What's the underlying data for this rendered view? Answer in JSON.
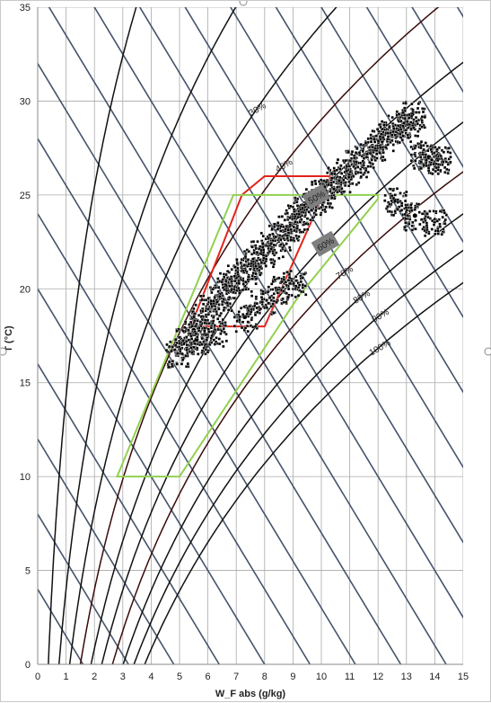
{
  "chart_data": {
    "type": "scatter",
    "title": "",
    "xlabel": "W_F abs (g/kg)",
    "ylabel": "T (°C)",
    "xlim": [
      0,
      15
    ],
    "ylim": [
      0,
      35
    ],
    "x_ticks": [
      0,
      1,
      2,
      3,
      4,
      5,
      6,
      7,
      8,
      9,
      10,
      11,
      12,
      13,
      14,
      15
    ],
    "y_ticks": [
      0,
      5,
      10,
      15,
      20,
      25,
      30,
      35
    ],
    "grid": true,
    "rh_curves": [
      {
        "rh": 10,
        "label": ""
      },
      {
        "rh": 20,
        "label": ""
      },
      {
        "rh": 30,
        "label": "30%"
      },
      {
        "rh": 40,
        "label": "40%"
      },
      {
        "rh": 50,
        "label": "50%"
      },
      {
        "rh": 60,
        "label": "60%"
      },
      {
        "rh": 70,
        "label": "70%"
      },
      {
        "rh": 80,
        "label": "80%"
      },
      {
        "rh": 90,
        "label": "90%"
      },
      {
        "rh": 100,
        "label": "100%"
      }
    ],
    "comfort_zones": [
      {
        "name": "",
        "color": "#e2231a",
        "points": [
          [
            8,
            26
          ],
          [
            10.3,
            26
          ],
          [
            10.3,
            25.8
          ],
          [
            8,
            18
          ],
          [
            5.4,
            18
          ],
          [
            7.2,
            25
          ]
        ]
      },
      {
        "name": "",
        "color": "#92d050",
        "points": [
          [
            6.9,
            25
          ],
          [
            12,
            25
          ],
          [
            12,
            24.8
          ],
          [
            9.2,
            19.6
          ],
          [
            5,
            10
          ],
          [
            2.8,
            10
          ]
        ]
      }
    ],
    "series": [
      {
        "name": "",
        "approx_cloud": [
          [
            4.9,
            16.6
          ],
          [
            5.2,
            17.2
          ],
          [
            5.5,
            17.8
          ],
          [
            5.8,
            18.5
          ],
          [
            6.1,
            19.0
          ],
          [
            6.4,
            19.6
          ],
          [
            6.7,
            20.2
          ],
          [
            7.0,
            20.6
          ],
          [
            7.3,
            21.0
          ],
          [
            7.6,
            21.5
          ],
          [
            7.9,
            21.9
          ],
          [
            8.2,
            22.4
          ],
          [
            8.5,
            22.8
          ],
          [
            8.8,
            23.3
          ],
          [
            9.1,
            23.8
          ],
          [
            9.4,
            24.2
          ],
          [
            9.7,
            24.7
          ],
          [
            10.0,
            25.1
          ],
          [
            10.3,
            25.6
          ],
          [
            10.6,
            25.9
          ],
          [
            10.9,
            26.3
          ],
          [
            11.2,
            26.7
          ],
          [
            11.5,
            27.1
          ],
          [
            11.8,
            27.6
          ],
          [
            12.1,
            28.0
          ],
          [
            12.4,
            28.3
          ],
          [
            12.7,
            28.6
          ],
          [
            13.0,
            28.9
          ],
          [
            13.2,
            29.3
          ],
          [
            13.5,
            27.2
          ],
          [
            13.8,
            27.0
          ],
          [
            14.1,
            26.9
          ],
          [
            12.6,
            24.7
          ],
          [
            13.3,
            23.9
          ],
          [
            14.0,
            23.6
          ],
          [
            9.0,
            20.3
          ],
          [
            8.5,
            20.0
          ],
          [
            7.9,
            19.3
          ],
          [
            7.3,
            18.5
          ],
          [
            6.2,
            17.7
          ],
          [
            5.6,
            17.3
          ]
        ]
      }
    ]
  }
}
